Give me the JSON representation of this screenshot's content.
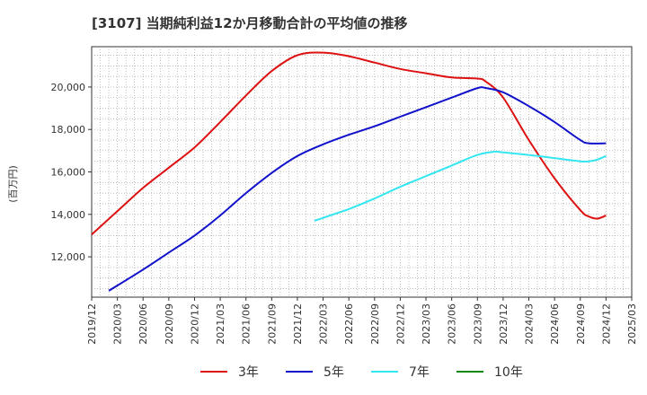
{
  "chart_data": {
    "type": "line",
    "title": "[3107]  当期純利益12か月移動合計の平均値の推移",
    "ylabel": "(百万円)",
    "xlabel": "",
    "ylim": [
      10100,
      21900
    ],
    "y_ticks": [
      12000,
      14000,
      16000,
      18000,
      20000
    ],
    "y_tick_labels": [
      "12,000",
      "14,000",
      "16,000",
      "18,000",
      "20,000"
    ],
    "x_ticks": [
      "2019/12",
      "2020/03",
      "2020/06",
      "2020/09",
      "2020/12",
      "2021/03",
      "2021/06",
      "2021/09",
      "2021/12",
      "2022/03",
      "2022/06",
      "2022/09",
      "2022/12",
      "2023/03",
      "2023/06",
      "2023/09",
      "2023/12",
      "2024/03",
      "2024/06",
      "2024/09",
      "2024/12",
      "2025/03"
    ],
    "grid": true,
    "legend_position": "bottom",
    "series": [
      {
        "name": "3年",
        "color": "#dd1111",
        "points": [
          [
            "2019/12",
            13050
          ],
          [
            "2020/03",
            14150
          ],
          [
            "2020/06",
            15250
          ],
          [
            "2020/09",
            16200
          ],
          [
            "2020/12",
            17150
          ],
          [
            "2021/03",
            18350
          ],
          [
            "2021/06",
            19600
          ],
          [
            "2021/09",
            20750
          ],
          [
            "2021/12",
            21500
          ],
          [
            "2022/03",
            21620
          ],
          [
            "2022/06",
            21450
          ],
          [
            "2022/09",
            21150
          ],
          [
            "2022/12",
            20850
          ],
          [
            "2023/03",
            20650
          ],
          [
            "2023/06",
            20450
          ],
          [
            "2023/09",
            20400
          ],
          [
            "2023/10",
            20250
          ],
          [
            "2023/12",
            19500
          ],
          [
            "2024/03",
            17500
          ],
          [
            "2024/06",
            15700
          ],
          [
            "2024/09",
            14200
          ],
          [
            "2024/10",
            13900
          ],
          [
            "2024/11",
            13800
          ],
          [
            "2024/12",
            13950
          ]
        ]
      },
      {
        "name": "5年",
        "color": "#1111cc",
        "points": [
          [
            "2020/02",
            10400
          ],
          [
            "2020/06",
            11400
          ],
          [
            "2020/09",
            12200
          ],
          [
            "2020/12",
            13000
          ],
          [
            "2021/03",
            13950
          ],
          [
            "2021/06",
            15000
          ],
          [
            "2021/09",
            15950
          ],
          [
            "2021/12",
            16750
          ],
          [
            "2022/03",
            17300
          ],
          [
            "2022/06",
            17750
          ],
          [
            "2022/09",
            18150
          ],
          [
            "2022/12",
            18600
          ],
          [
            "2023/03",
            19050
          ],
          [
            "2023/06",
            19500
          ],
          [
            "2023/09",
            19950
          ],
          [
            "2023/10",
            19950
          ],
          [
            "2023/12",
            19750
          ],
          [
            "2024/03",
            19100
          ],
          [
            "2024/06",
            18350
          ],
          [
            "2024/09",
            17500
          ],
          [
            "2024/10",
            17350
          ],
          [
            "2024/12",
            17350
          ]
        ]
      },
      {
        "name": "7年",
        "color": "#33e6f0",
        "points": [
          [
            "2022/02",
            13700
          ],
          [
            "2022/06",
            14250
          ],
          [
            "2022/09",
            14750
          ],
          [
            "2022/12",
            15300
          ],
          [
            "2023/03",
            15800
          ],
          [
            "2023/06",
            16300
          ],
          [
            "2023/09",
            16800
          ],
          [
            "2023/11",
            16950
          ],
          [
            "2023/12",
            16920
          ],
          [
            "2024/03",
            16800
          ],
          [
            "2024/06",
            16650
          ],
          [
            "2024/09",
            16500
          ],
          [
            "2024/10",
            16500
          ],
          [
            "2024/11",
            16580
          ],
          [
            "2024/12",
            16750
          ]
        ]
      },
      {
        "name": "10年",
        "color": "#118811",
        "points": []
      }
    ]
  }
}
